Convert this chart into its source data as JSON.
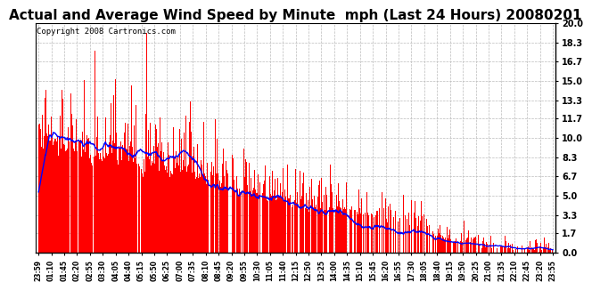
{
  "title": "Actual and Average Wind Speed by Minute  mph (Last 24 Hours) 20080201",
  "copyright_text": "Copyright 2008 Cartronics.com",
  "yticks": [
    0.0,
    1.7,
    3.3,
    5.0,
    6.7,
    8.3,
    10.0,
    11.7,
    13.3,
    15.0,
    16.7,
    18.3,
    20.0
  ],
  "ylim": [
    0.0,
    20.0
  ],
  "bar_color": "#FF0000",
  "line_color": "#0000FF",
  "background_color": "#FFFFFF",
  "grid_color": "#BBBBBB",
  "title_fontsize": 11,
  "copyright_fontsize": 6.5,
  "x_labels": [
    "23:59",
    "01:10",
    "01:45",
    "02:20",
    "02:55",
    "03:30",
    "04:05",
    "04:40",
    "05:15",
    "05:50",
    "06:25",
    "07:00",
    "07:35",
    "08:10",
    "08:45",
    "09:20",
    "09:55",
    "10:30",
    "11:05",
    "11:40",
    "12:15",
    "12:50",
    "13:25",
    "14:00",
    "14:35",
    "15:10",
    "15:45",
    "16:20",
    "16:55",
    "17:30",
    "18:05",
    "18:40",
    "19:15",
    "19:50",
    "20:25",
    "21:00",
    "21:35",
    "22:10",
    "22:45",
    "23:20",
    "23:55"
  ],
  "n_points": 1440,
  "seed": 7
}
